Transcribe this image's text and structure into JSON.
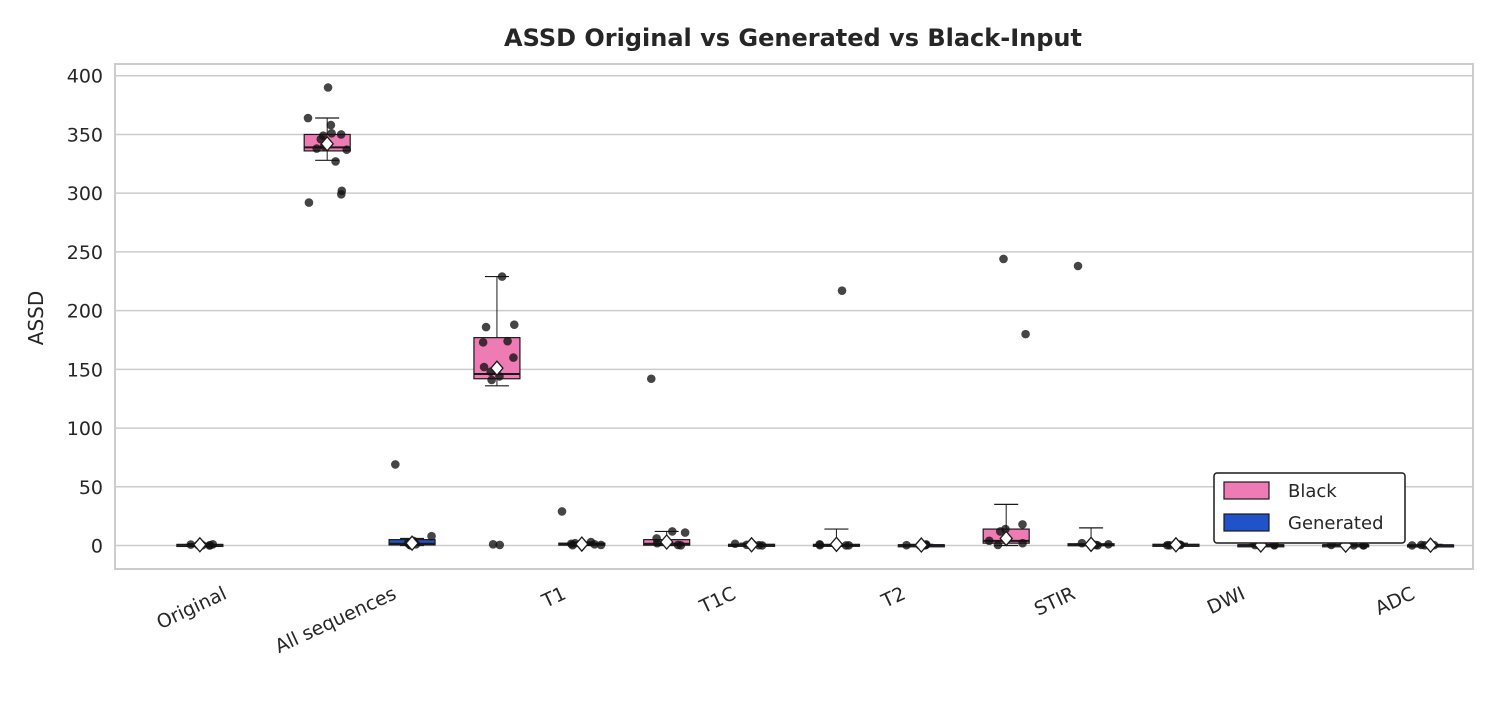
{
  "chart_data": {
    "type": "box",
    "title": "ASSD Original vs Generated vs Black-Input",
    "xlabel": "",
    "ylabel": "ASSD",
    "ylim": [
      -20,
      410
    ],
    "yticks": [
      0,
      50,
      100,
      150,
      200,
      250,
      300,
      350,
      400
    ],
    "grid": true,
    "legend_position": "lower-right",
    "categories": [
      "Original",
      "All sequences",
      "T1",
      "T1C",
      "T2",
      "STIR",
      "DWI",
      "ADC"
    ],
    "colors": {
      "Original": "#b0b0b0",
      "Black": "#ee7bb4",
      "Generated": "#2152c9"
    },
    "series": [
      {
        "name": "Original",
        "boxes": [
          {
            "category": "Original",
            "q1": 0.2,
            "median": 0.5,
            "q3": 0.9,
            "whisker_low": 0,
            "whisker_high": 1.5,
            "mean": 0.6,
            "points": [
              0.1,
              0.3,
              0.5,
              0.8,
              1.0,
              0.2,
              0.6,
              1.2
            ]
          }
        ]
      },
      {
        "name": "Black",
        "boxes": [
          {
            "category": "All sequences",
            "q1": 336,
            "median": 339,
            "q3": 350,
            "whisker_low": 328,
            "whisker_high": 364,
            "mean": 342,
            "points": [
              390,
              364,
              358,
              351,
              349,
              350,
              346,
              340,
              338,
              337,
              327,
              302,
              299,
              292
            ]
          },
          {
            "category": "T1",
            "q1": 142,
            "median": 146,
            "q3": 177,
            "whisker_low": 136,
            "whisker_high": 229,
            "mean": 151,
            "points": [
              229,
              188,
              186,
              174,
              173,
              160,
              152,
              148,
              144,
              141,
              1.0,
              0.5
            ]
          },
          {
            "category": "T1C",
            "q1": 0.3,
            "median": 1.5,
            "q3": 5,
            "whisker_low": 0,
            "whisker_high": 12,
            "mean": 3,
            "points": [
              142,
              12,
              11,
              6,
              2,
              0.5,
              0.2
            ]
          },
          {
            "category": "T2",
            "q1": 0.1,
            "median": 0.3,
            "q3": 1.0,
            "whisker_low": 0,
            "whisker_high": 14,
            "mean": 1,
            "points": [
              217,
              1.0,
              0.5,
              0.2,
              0.1,
              0.3
            ]
          },
          {
            "category": "STIR",
            "q1": 2,
            "median": 4,
            "q3": 14,
            "whisker_low": 0,
            "whisker_high": 35,
            "mean": 6,
            "points": [
              244,
              180,
              18,
              14,
              12,
              6,
              4,
              2,
              0.5
            ]
          },
          {
            "category": "DWI",
            "q1": 0.2,
            "median": 0.5,
            "q3": 1.0,
            "whisker_low": 0,
            "whisker_high": 2,
            "mean": 0.6,
            "points": [
              0.2,
              0.5,
              0.8,
              1.0,
              0.3
            ]
          },
          {
            "category": "ADC",
            "q1": 0.1,
            "median": 0.3,
            "q3": 0.6,
            "whisker_low": 0,
            "whisker_high": 1,
            "mean": 0.3,
            "points": [
              0.1,
              0.3,
              0.5,
              0.2
            ]
          }
        ]
      },
      {
        "name": "Generated",
        "boxes": [
          {
            "category": "All sequences",
            "q1": 0.5,
            "median": 1.5,
            "q3": 5,
            "whisker_low": 0,
            "whisker_high": 6,
            "mean": 2,
            "points": [
              69,
              8,
              4,
              2,
              1,
              0.5,
              0.2
            ]
          },
          {
            "category": "T1",
            "q1": 0.5,
            "median": 1.0,
            "q3": 2,
            "whisker_low": 0,
            "whisker_high": 3,
            "mean": 1.2,
            "points": [
              29,
              3,
              2,
              1.5,
              1,
              0.5,
              0.3
            ]
          },
          {
            "category": "T1C",
            "q1": 0.2,
            "median": 0.5,
            "q3": 1.0,
            "whisker_low": 0,
            "whisker_high": 2,
            "mean": 0.6,
            "points": [
              1.5,
              1.0,
              0.6,
              0.3,
              0.1
            ]
          },
          {
            "category": "T2",
            "q1": 0.1,
            "median": 0.3,
            "q3": 0.6,
            "whisker_low": 0,
            "whisker_high": 1,
            "mean": 0.4,
            "points": [
              0.9,
              0.5,
              0.3,
              0.1,
              0.2
            ]
          },
          {
            "category": "STIR",
            "q1": 0.2,
            "median": 0.5,
            "q3": 1.5,
            "whisker_low": 0,
            "whisker_high": 15,
            "mean": 1,
            "points": [
              238,
              2,
              1,
              0.5,
              0.2
            ]
          },
          {
            "category": "DWI",
            "q1": 0.1,
            "median": 0.3,
            "q3": 0.6,
            "whisker_low": 0,
            "whisker_high": 1,
            "mean": 0.4,
            "points": [
              0.8,
              0.4,
              0.2,
              0.1
            ]
          },
          {
            "category": "ADC",
            "q1": 0.1,
            "median": 0.2,
            "q3": 0.5,
            "whisker_low": 0,
            "whisker_high": 1,
            "mean": 0.3,
            "points": [
              0.5,
              0.3,
              0.1,
              0.2
            ]
          }
        ]
      }
    ],
    "legend": [
      "Black",
      "Generated"
    ]
  }
}
